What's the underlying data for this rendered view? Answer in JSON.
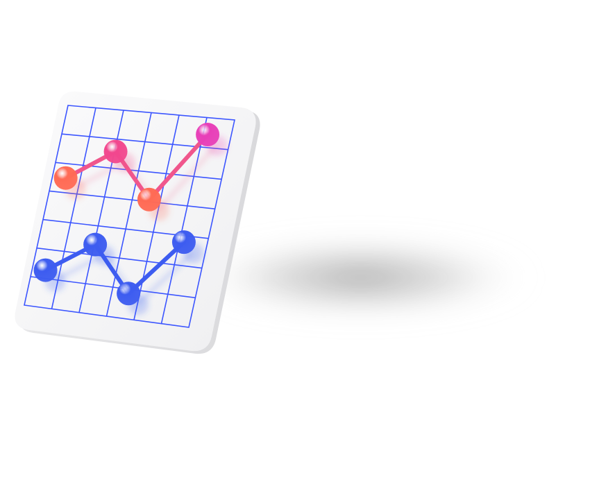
{
  "chart_data": {
    "type": "line",
    "x": [
      0,
      1,
      2,
      3
    ],
    "ylim": [
      0,
      6
    ],
    "series": [
      {
        "values": [
          4.0,
          5.0,
          3.6,
          5.8
        ],
        "colors": [
          "#ff6b55",
          "#f2478e",
          "#ff6b55",
          "#e83fb8"
        ]
      },
      {
        "values": [
          1.0,
          2.0,
          0.6,
          2.4
        ],
        "colors": [
          "#3d5cf0",
          "#3d5cf0",
          "#3d5cf0",
          "#3d5cf0"
        ]
      }
    ],
    "grid": true,
    "legend": "none"
  },
  "colors": {
    "grid_line": "#3b55ff",
    "tile_face": "#f4f4f5",
    "tile_edge": "#e2e2e4",
    "shadow": "#6f6f6f",
    "line_pink": "#f0568c",
    "line_blue": "#3d5cf0"
  }
}
